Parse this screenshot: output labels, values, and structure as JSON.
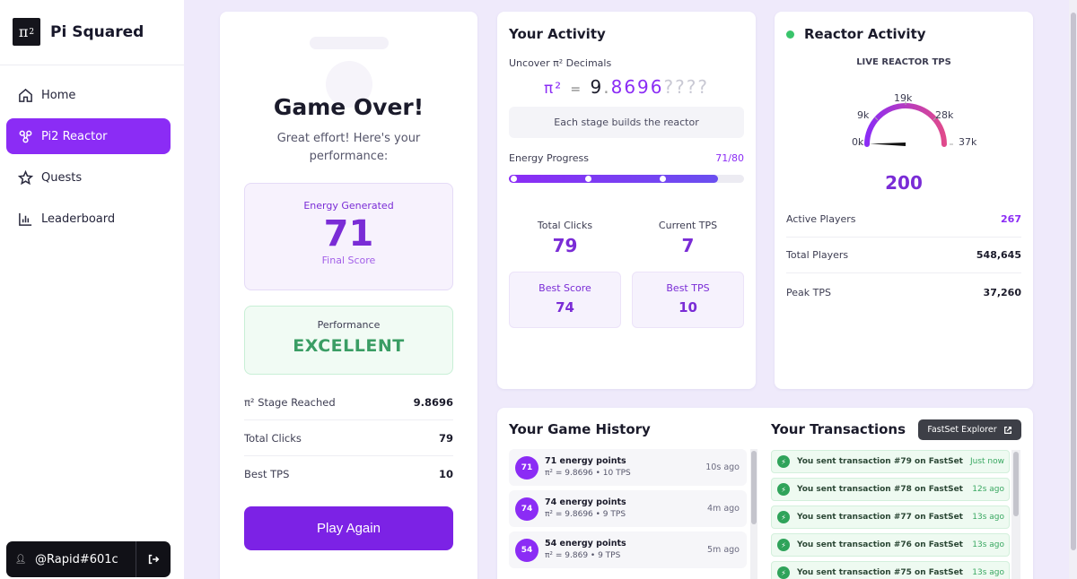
{
  "app": {
    "logo_text": "π",
    "logo_sup": "2",
    "name": "Pi Squared"
  },
  "nav": {
    "home": "Home",
    "reactor": "Pi2 Reactor",
    "quests": "Quests",
    "leaderboard": "Leaderboard"
  },
  "user": {
    "icon": "person-icon",
    "handle": "@Rapid#601c"
  },
  "game_over": {
    "title": "Game Over!",
    "subtitle": "Great effort! Here's your performance:",
    "energy_label": "Energy Generated",
    "energy_value": "71",
    "energy_sub": "Final Score",
    "perf_label": "Performance",
    "perf_value": "EXCELLENT",
    "stats": [
      {
        "label": "π² Stage Reached",
        "value": "9.8696"
      },
      {
        "label": "Total Clicks",
        "value": "79"
      },
      {
        "label": "Best TPS",
        "value": "10"
      }
    ],
    "play_again": "Play Again"
  },
  "activity": {
    "title": "Your Activity",
    "uncover_label": "Uncover π² Decimals",
    "pi_symbol": "π²",
    "equals": "=",
    "whole": "9",
    "dot": ".",
    "known_digits": "8696",
    "unknown_digits": "????",
    "stage_note": "Each stage builds the reactor",
    "energy_progress_label": "Energy Progress",
    "energy_progress_value": "71/80",
    "energy_progress_fraction": 0.8875,
    "total_clicks_label": "Total Clicks",
    "total_clicks": "79",
    "current_tps_label": "Current TPS",
    "current_tps": "7",
    "best_score_label": "Best Score",
    "best_score": "74",
    "best_tps_label": "Best TPS",
    "best_tps": "10"
  },
  "reactor": {
    "title": "Reactor Activity",
    "live_label": "LIVE REACTOR TPS",
    "gauge_labels": [
      "0k",
      "9k",
      "19k",
      "28k",
      "37k"
    ],
    "gauge_value": 200,
    "gauge_max": 37000,
    "tps_value": "200",
    "active_players_label": "Active Players",
    "active_players": "267",
    "total_players_label": "Total Players",
    "total_players": "548,645",
    "peak_tps_label": "Peak TPS",
    "peak_tps": "37,260",
    "colors": {
      "arc_start": "#8b2cf5",
      "arc_end": "#e04a8c",
      "live_dot": "#39c46b"
    }
  },
  "history": {
    "title": "Your Game History",
    "items": [
      {
        "badge": "71",
        "main": "71 energy points",
        "sub": "π² = 9.8696 • 10 TPS",
        "time": "10s ago"
      },
      {
        "badge": "74",
        "main": "74 energy points",
        "sub": "π² = 9.8696 • 9 TPS",
        "time": "4m ago"
      },
      {
        "badge": "54",
        "main": "54 energy points",
        "sub": "π² = 9.869 • 9 TPS",
        "time": "5m ago"
      }
    ]
  },
  "transactions": {
    "title": "Your Transactions",
    "explorer_label": "FastSet Explorer",
    "items": [
      {
        "text": "You sent transaction #79 on FastSet",
        "time": "Just now"
      },
      {
        "text": "You sent transaction #78 on FastSet",
        "time": "12s ago"
      },
      {
        "text": "You sent transaction #77 on FastSet",
        "time": "13s ago"
      },
      {
        "text": "You sent transaction #76 on FastSet",
        "time": "13s ago"
      },
      {
        "text": "You sent transaction #75 on FastSet",
        "time": "13s ago"
      }
    ]
  }
}
